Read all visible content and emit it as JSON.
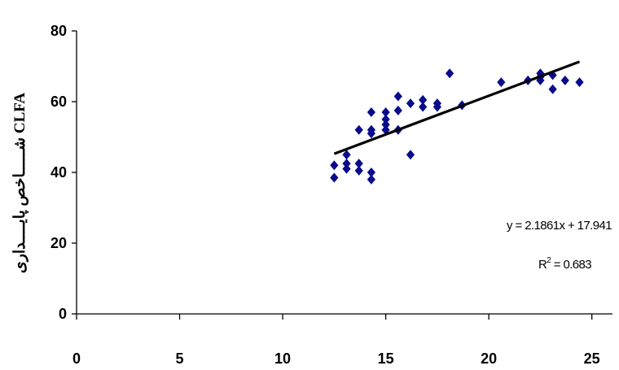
{
  "chart_data": {
    "type": "scatter",
    "title": "",
    "xlabel": "",
    "ylabel": "شـــــاخص پايــــداری CLFA",
    "xlim": [
      0,
      26
    ],
    "ylim": [
      0,
      80
    ],
    "x_ticks": [
      0,
      5,
      10,
      15,
      20,
      25
    ],
    "y_ticks": [
      0,
      20,
      40,
      60,
      80
    ],
    "x_tick_labels": [
      "0",
      "5",
      "10",
      "15",
      "20",
      "25"
    ],
    "y_tick_labels": [
      "0",
      "20",
      "40",
      "60",
      "80"
    ],
    "grid": false,
    "legend": "none",
    "marker": "diamond",
    "marker_color": "#0a0a8c",
    "trendline_color": "#000000",
    "series": [
      {
        "points": [
          [
            12.5,
            38.5
          ],
          [
            12.5,
            42.0
          ],
          [
            13.1,
            41.0
          ],
          [
            13.1,
            42.5
          ],
          [
            13.1,
            45.0
          ],
          [
            13.7,
            40.5
          ],
          [
            13.7,
            42.5
          ],
          [
            13.7,
            52.0
          ],
          [
            14.3,
            38.0
          ],
          [
            14.3,
            40.0
          ],
          [
            14.3,
            51.0
          ],
          [
            14.3,
            52.0
          ],
          [
            14.3,
            57.0
          ],
          [
            15.0,
            52.0
          ],
          [
            15.0,
            53.5
          ],
          [
            15.0,
            55.0
          ],
          [
            15.0,
            57.0
          ],
          [
            15.6,
            52.0
          ],
          [
            15.6,
            57.5
          ],
          [
            15.6,
            61.5
          ],
          [
            16.2,
            45.0
          ],
          [
            16.2,
            59.5
          ],
          [
            16.8,
            58.5
          ],
          [
            16.8,
            60.5
          ],
          [
            17.5,
            58.5
          ],
          [
            17.5,
            59.5
          ],
          [
            18.1,
            68.0
          ],
          [
            18.7,
            59.0
          ],
          [
            20.6,
            65.5
          ],
          [
            21.9,
            66.0
          ],
          [
            22.5,
            66.0
          ],
          [
            22.5,
            67.0
          ],
          [
            22.5,
            68.0
          ],
          [
            23.1,
            63.5
          ],
          [
            23.1,
            67.5
          ],
          [
            23.7,
            66.0
          ],
          [
            24.4,
            65.5
          ]
        ]
      }
    ],
    "trendline": {
      "slope": 2.1861,
      "intercept": 17.941,
      "x_range": [
        12.5,
        24.4
      ],
      "equation_label": "y = 2.1861x + 17.941",
      "r2_prefix": "R",
      "r2_superscript": "2",
      "r2_value_text": " = 0.683"
    }
  }
}
